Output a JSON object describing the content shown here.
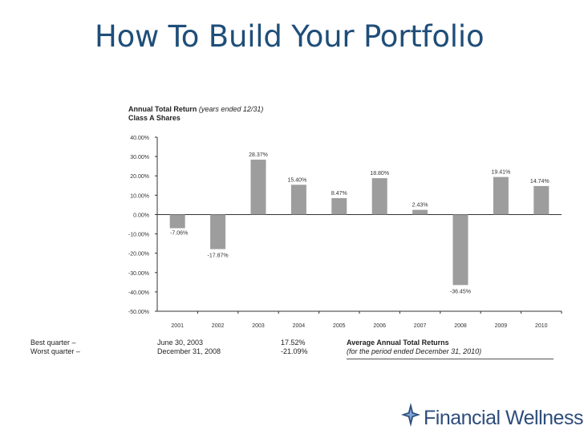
{
  "slide": {
    "title": "How To Build Your Portfolio"
  },
  "chart_heading": {
    "title": "Annual Total Return",
    "title_note": "(years ended 12/31)",
    "subtitle": "Class A Shares"
  },
  "chart_data": {
    "type": "bar",
    "categories": [
      "2001",
      "2002",
      "2003",
      "2004",
      "2005",
      "2006",
      "2007",
      "2008",
      "2009",
      "2010"
    ],
    "values": [
      -7.06,
      -17.87,
      28.37,
      15.4,
      8.47,
      18.8,
      2.43,
      -36.45,
      19.41,
      14.74
    ],
    "value_labels": [
      "-7.06%",
      "-17.87%",
      "28.37%",
      "15.40%",
      "8.47%",
      "18.80%",
      "2.43%",
      "-36.45%",
      "19.41%",
      "14.74%"
    ],
    "y_ticks": [
      "40.00%",
      "30.00%",
      "20.00%",
      "10.00%",
      "0.00%",
      "-10.00%",
      "-20.00%",
      "-30.00%",
      "-40.00%",
      "-50.00%"
    ],
    "ylim": [
      -50,
      40
    ],
    "bar_color": "#9d9d9d",
    "grid": false
  },
  "quarters": {
    "best_label": "Best quarter –",
    "worst_label": "Worst quarter –",
    "best_date": "June 30, 2003",
    "worst_date": "December 31, 2008",
    "best_value": "17.52%",
    "worst_value": "-21.09%"
  },
  "average": {
    "heading": "Average Annual Total Returns",
    "subheading": "(for the period ended December 31, 2010)"
  },
  "logo": {
    "text": "Financial Wellness",
    "icon": "star-compass-icon"
  }
}
